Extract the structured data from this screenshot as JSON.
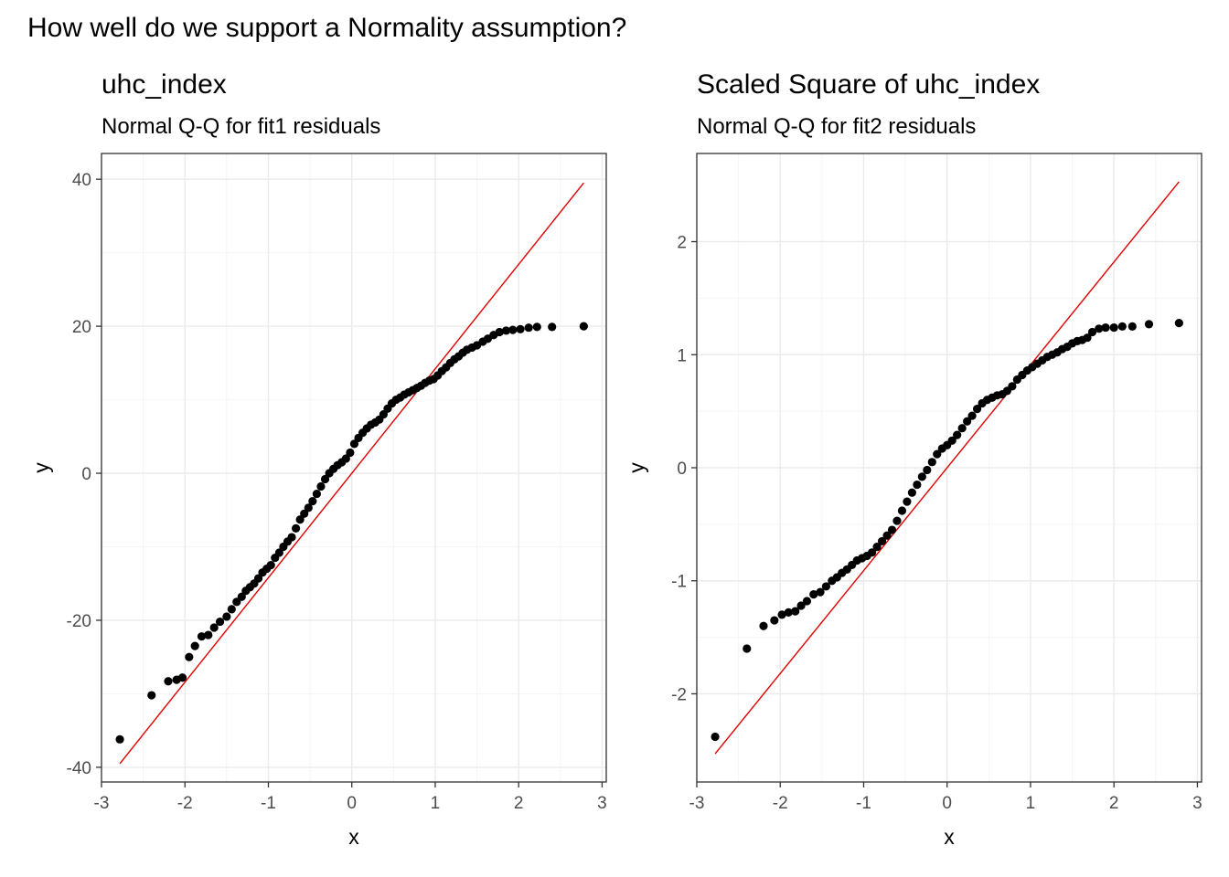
{
  "figure": {
    "title": "How well do we support a Normality assumption?"
  },
  "colors": {
    "point": "#000000",
    "line": "#e00000",
    "grid_major": "#ebebeb",
    "grid_minor": "#f5f5f5",
    "panel_border": "#333333"
  },
  "chart_data": [
    {
      "type": "scatter",
      "title": "uhc_index",
      "subtitle": "Normal Q-Q for fit1 residuals",
      "xlabel": "x",
      "ylabel": "y",
      "xlim": [
        -3.0,
        3.05
      ],
      "ylim": [
        -42,
        43.5
      ],
      "xticks": [
        -3,
        -2,
        -1,
        0,
        1,
        2,
        3
      ],
      "yticks": [
        -40,
        -20,
        0,
        20,
        40
      ],
      "grid": true,
      "reference_line": {
        "x": [
          -2.78,
          2.78
        ],
        "y": [
          -39.5,
          39.5
        ]
      },
      "points": {
        "x": [
          -2.78,
          -2.4,
          -2.2,
          -2.1,
          -2.03,
          -1.95,
          -1.88,
          -1.8,
          -1.72,
          -1.65,
          -1.58,
          -1.5,
          -1.44,
          -1.38,
          -1.32,
          -1.27,
          -1.22,
          -1.17,
          -1.12,
          -1.07,
          -1.02,
          -0.97,
          -0.92,
          -0.87,
          -0.82,
          -0.77,
          -0.72,
          -0.67,
          -0.62,
          -0.57,
          -0.52,
          -0.47,
          -0.42,
          -0.37,
          -0.32,
          -0.27,
          -0.22,
          -0.17,
          -0.12,
          -0.07,
          -0.02,
          0.03,
          0.08,
          0.13,
          0.18,
          0.23,
          0.28,
          0.33,
          0.38,
          0.43,
          0.48,
          0.53,
          0.58,
          0.63,
          0.68,
          0.73,
          0.78,
          0.83,
          0.88,
          0.93,
          0.98,
          1.03,
          1.08,
          1.13,
          1.18,
          1.23,
          1.28,
          1.33,
          1.38,
          1.44,
          1.5,
          1.57,
          1.63,
          1.7,
          1.77,
          1.85,
          1.93,
          2.02,
          2.12,
          2.22,
          2.4,
          2.78
        ],
        "y": [
          -36.2,
          -30.2,
          -28.3,
          -28.1,
          -27.8,
          -25,
          -23.5,
          -22.2,
          -22,
          -21,
          -20.2,
          -19.5,
          -18.5,
          -17.5,
          -16.8,
          -16,
          -15.5,
          -15,
          -14.3,
          -13.5,
          -13,
          -12.5,
          -11.5,
          -10.8,
          -10,
          -9.3,
          -8.7,
          -7.5,
          -6.3,
          -5.5,
          -4.7,
          -3.8,
          -2.8,
          -1.8,
          -0.8,
          0,
          0.6,
          1.1,
          1.5,
          2.0,
          2.8,
          4.0,
          4.8,
          5.5,
          6.1,
          6.6,
          6.9,
          7.3,
          8.0,
          8.8,
          9.5,
          10.0,
          10.3,
          10.7,
          11.0,
          11.3,
          11.6,
          11.9,
          12.3,
          12.6,
          12.8,
          13.3,
          13.9,
          14.4,
          15.0,
          15.5,
          15.9,
          16.4,
          16.8,
          17.1,
          17.4,
          17.9,
          18.3,
          18.8,
          19.2,
          19.4,
          19.5,
          19.6,
          19.8,
          19.9,
          19.9,
          20.0
        ]
      }
    },
    {
      "type": "scatter",
      "title": "Scaled Square of uhc_index",
      "subtitle": "Normal Q-Q for fit2 residuals",
      "xlabel": "x",
      "ylabel": "y",
      "xlim": [
        -3.0,
        3.05
      ],
      "ylim": [
        -2.78,
        2.78
      ],
      "xticks": [
        -3,
        -2,
        -1,
        0,
        1,
        2,
        3
      ],
      "yticks": [
        -2,
        -1,
        0,
        1,
        2
      ],
      "grid": true,
      "reference_line": {
        "x": [
          -2.78,
          2.78
        ],
        "y": [
          -2.53,
          2.53
        ]
      },
      "points": {
        "x": [
          -2.78,
          -2.4,
          -2.2,
          -2.07,
          -1.98,
          -1.9,
          -1.82,
          -1.75,
          -1.68,
          -1.6,
          -1.52,
          -1.45,
          -1.38,
          -1.32,
          -1.26,
          -1.2,
          -1.14,
          -1.08,
          -1.02,
          -0.96,
          -0.9,
          -0.84,
          -0.78,
          -0.72,
          -0.66,
          -0.6,
          -0.54,
          -0.48,
          -0.42,
          -0.36,
          -0.3,
          -0.24,
          -0.18,
          -0.12,
          -0.06,
          0.0,
          0.06,
          0.12,
          0.18,
          0.24,
          0.3,
          0.36,
          0.42,
          0.48,
          0.54,
          0.6,
          0.66,
          0.72,
          0.78,
          0.84,
          0.9,
          0.96,
          1.02,
          1.08,
          1.14,
          1.2,
          1.26,
          1.32,
          1.38,
          1.44,
          1.5,
          1.56,
          1.62,
          1.68,
          1.74,
          1.82,
          1.9,
          2.0,
          2.1,
          2.22,
          2.42,
          2.78
        ],
        "y": [
          -2.38,
          -1.6,
          -1.4,
          -1.35,
          -1.3,
          -1.28,
          -1.27,
          -1.22,
          -1.18,
          -1.12,
          -1.1,
          -1.05,
          -1.0,
          -0.97,
          -0.93,
          -0.9,
          -0.86,
          -0.82,
          -0.8,
          -0.78,
          -0.75,
          -0.7,
          -0.65,
          -0.6,
          -0.55,
          -0.47,
          -0.38,
          -0.3,
          -0.22,
          -0.15,
          -0.08,
          -0.02,
          0.05,
          0.12,
          0.17,
          0.2,
          0.24,
          0.29,
          0.35,
          0.41,
          0.46,
          0.52,
          0.57,
          0.6,
          0.62,
          0.64,
          0.65,
          0.68,
          0.72,
          0.78,
          0.82,
          0.86,
          0.89,
          0.92,
          0.95,
          0.98,
          1.0,
          1.02,
          1.05,
          1.07,
          1.1,
          1.12,
          1.13,
          1.15,
          1.2,
          1.23,
          1.24,
          1.24,
          1.25,
          1.25,
          1.27,
          1.28
        ]
      }
    }
  ]
}
